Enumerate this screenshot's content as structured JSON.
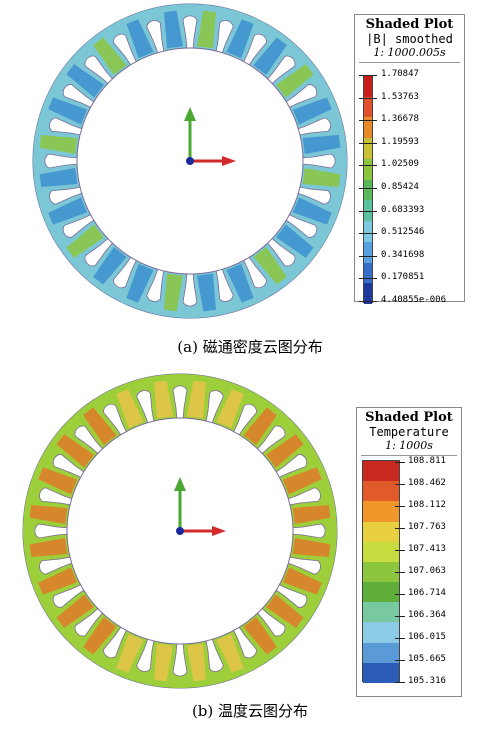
{
  "panel_a": {
    "legend": {
      "title": "Shaded Plot",
      "subtitle": "|B| smoothed",
      "time": "1: 1000.005s",
      "values": [
        "1.70847",
        "1.53763",
        "1.36678",
        "1.19593",
        "1.02509",
        "0.85424",
        "0.683393",
        "0.512546",
        "0.341698",
        "0.170851",
        "4.40855e-006"
      ],
      "colors": [
        "#c81e1e",
        "#e0502a",
        "#e88a2a",
        "#c9c035",
        "#8cc63f",
        "#5cb85c",
        "#5bbfa0",
        "#7ec8e3",
        "#5aa0dc",
        "#3a6fc8",
        "#1c3a9c"
      ]
    },
    "caption": "(a) 磁通密度云图分布",
    "colors": {
      "outer": "#5fb0c8",
      "inner": "#7bc7d6",
      "tooth": "#3d8fd0",
      "hot": "#8cc63f"
    }
  },
  "panel_b": {
    "legend": {
      "title": "Shaded Plot",
      "subtitle": "Temperature",
      "time": "1: 1000s",
      "values": [
        "108.811",
        "108.462",
        "108.112",
        "107.763",
        "107.413",
        "107.063",
        "106.714",
        "106.364",
        "106.015",
        "105.665",
        "105.316"
      ],
      "colors": [
        "#c8281e",
        "#e05a2a",
        "#f0962a",
        "#e8d040",
        "#c8dc40",
        "#8cc63f",
        "#5fae3c",
        "#78c8a0",
        "#8ccbe6",
        "#5a9ad6",
        "#2a5cb8"
      ]
    },
    "caption": "(b) 温度云图分布",
    "colors": {
      "outer": "#7fbf3f",
      "inner": "#9ccf3a",
      "tooth": "#e8c34a",
      "hot": "#e07a2a"
    }
  }
}
